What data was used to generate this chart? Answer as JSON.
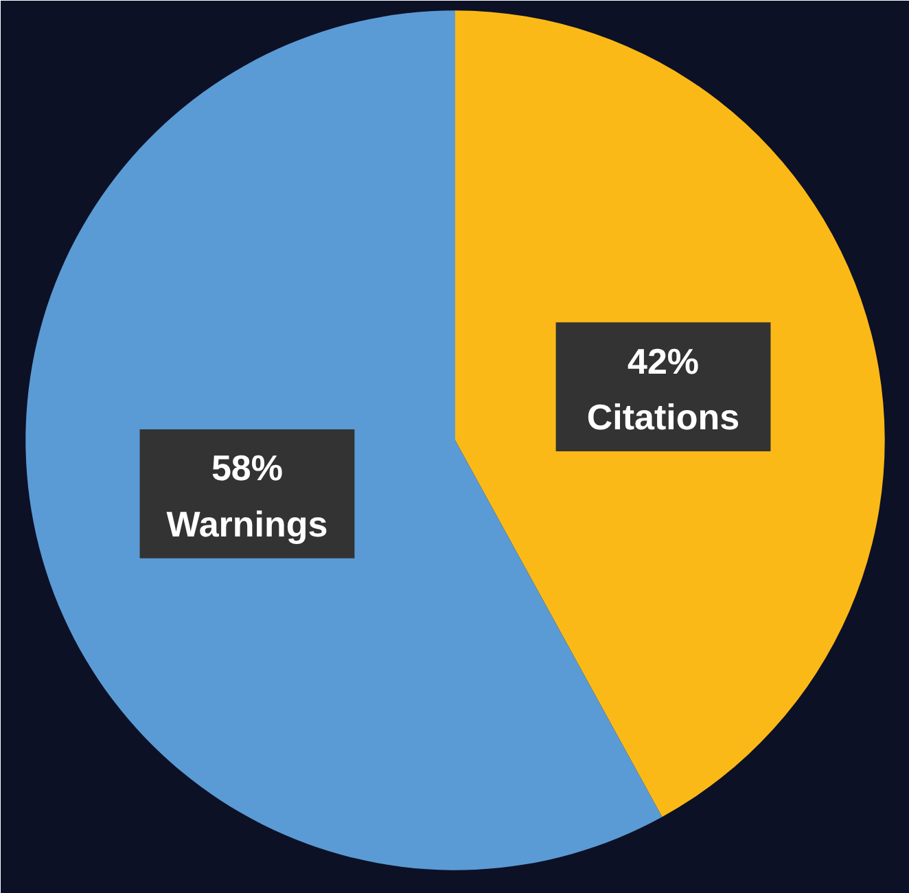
{
  "chart_data": {
    "type": "pie",
    "categories": [
      "Citations",
      "Warnings"
    ],
    "values": [
      42,
      58
    ],
    "colors": [
      "#fbb917",
      "#5b9bd5"
    ],
    "value_labels": [
      "42%",
      "58%"
    ]
  }
}
